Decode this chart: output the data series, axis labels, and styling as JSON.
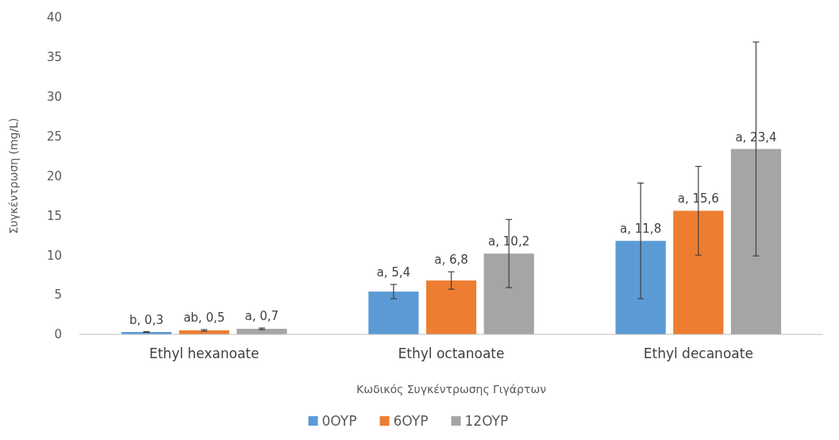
{
  "chart_data": {
    "type": "bar",
    "xlabel": "Κωδικός Συγκέντρωσης Γιγάρτων",
    "ylabel": "Συγκέντρωση (mg/L)",
    "categories": [
      "Ethyl hexanoate",
      "Ethyl octanoate",
      "Ethyl decanoate"
    ],
    "series": [
      {
        "name": "0OYP",
        "color": "#5b9bd5",
        "values": [
          0.3,
          5.4,
          11.8
        ],
        "errors": [
          0.05,
          0.9,
          7.3
        ],
        "value_labels": [
          "b, 0,3",
          "a, 5,4",
          "a, 11,8"
        ]
      },
      {
        "name": "6OYP",
        "color": "#ed7d31",
        "values": [
          0.5,
          6.8,
          15.6
        ],
        "errors": [
          0.1,
          1.1,
          5.6
        ],
        "value_labels": [
          "ab, 0,5",
          "a, 6,8",
          "a, 15,6"
        ]
      },
      {
        "name": "12OYP",
        "color": "#a5a5a5",
        "values": [
          0.7,
          10.2,
          23.4
        ],
        "errors": [
          0.1,
          4.3,
          13.5
        ],
        "value_labels": [
          "a, 0,7",
          "a, 10,2",
          "a, 23,4"
        ]
      }
    ],
    "ylim": [
      0,
      40
    ],
    "yticks": [
      0,
      5,
      10,
      15,
      20,
      25,
      30,
      35,
      40
    ],
    "grid": false,
    "legend": "bottom"
  }
}
